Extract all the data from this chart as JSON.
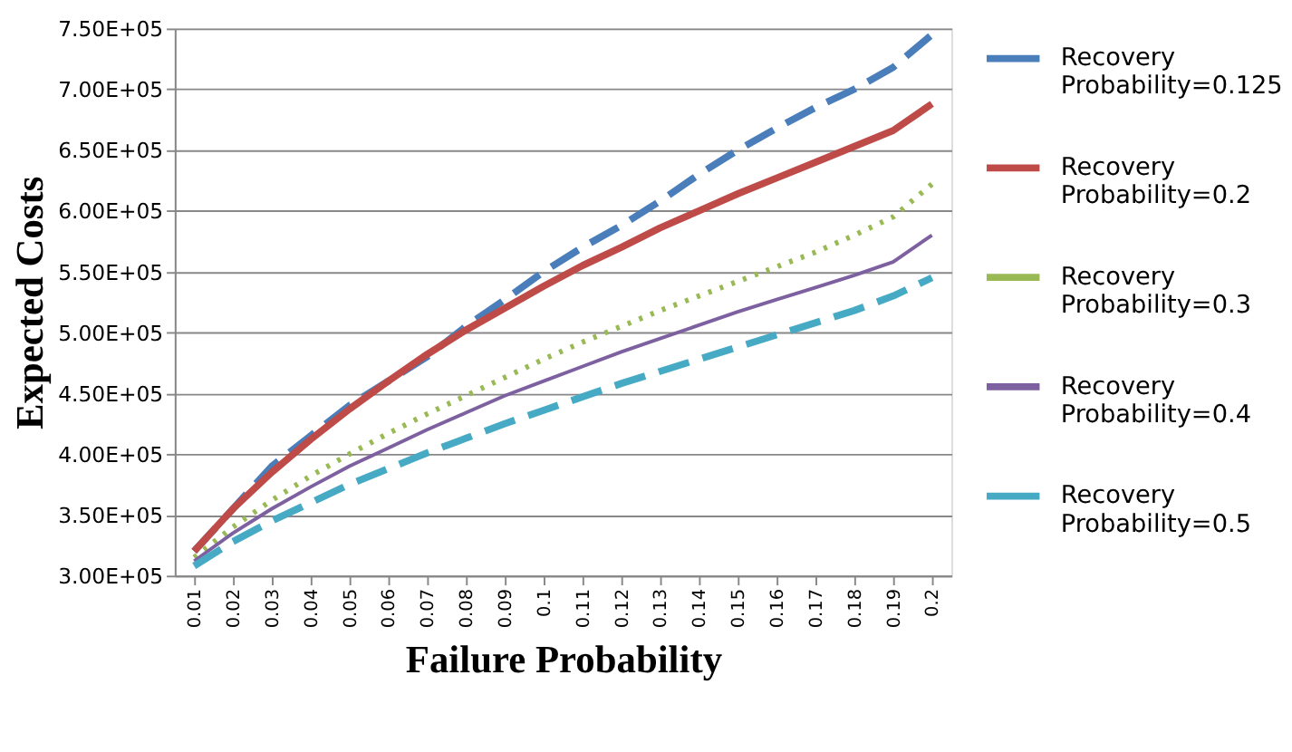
{
  "chart_data": {
    "type": "line",
    "xlabel": "Failure Probability",
    "ylabel": "Expected Costs",
    "categories": [
      "0.01",
      "0.02",
      "0.03",
      "0.04",
      "0.05",
      "0.06",
      "0.07",
      "0.08",
      "0.09",
      "0.1",
      "0.11",
      "0.12",
      "0.13",
      "0.14",
      "0.15",
      "0.16",
      "0.17",
      "0.18",
      "0.19",
      "0.2"
    ],
    "ylim": [
      300000,
      750000
    ],
    "yticks": [
      {
        "value": 300000,
        "label": "3.00E+05"
      },
      {
        "value": 350000,
        "label": "3.50E+05"
      },
      {
        "value": 400000,
        "label": "4.00E+05"
      },
      {
        "value": 450000,
        "label": "4.50E+05"
      },
      {
        "value": 500000,
        "label": "5.00E+05"
      },
      {
        "value": 550000,
        "label": "5.50E+05"
      },
      {
        "value": 600000,
        "label": "6.00E+05"
      },
      {
        "value": 650000,
        "label": "6.50E+05"
      },
      {
        "value": 700000,
        "label": "7.00E+05"
      },
      {
        "value": 750000,
        "label": "7.50E+05"
      }
    ],
    "grid": "y",
    "legend": "right",
    "marker": "none",
    "series": [
      {
        "name": "Recovery Probability=0.125",
        "color": "#4a7ebb",
        "line_style": "dashed",
        "values": [
          320000,
          355000,
          390000,
          415000,
          440000,
          460000,
          480000,
          505000,
          527000,
          550000,
          570000,
          588000,
          608000,
          630000,
          650000,
          668000,
          685000,
          700000,
          718000,
          745000
        ]
      },
      {
        "name": "Recovery Probability=0.2",
        "color": "#be4b48",
        "line_style": "solid",
        "values": [
          320000,
          355000,
          385000,
          412000,
          437000,
          460000,
          482000,
          502000,
          520000,
          538000,
          555000,
          570000,
          586000,
          600000,
          614000,
          627000,
          640000,
          653000,
          666000,
          688000
        ]
      },
      {
        "name": "Recovery Probability=0.3",
        "color": "#98b954",
        "line_style": "dotted",
        "values": [
          315000,
          340000,
          362000,
          382000,
          400000,
          417000,
          433000,
          448000,
          463000,
          478000,
          492000,
          505000,
          518000,
          530000,
          542000,
          554000,
          566000,
          580000,
          595000,
          622000
        ]
      },
      {
        "name": "Recovery Probability=0.4",
        "color": "#7d60a0",
        "line_style": "solid",
        "values": [
          312000,
          335000,
          355000,
          373000,
          390000,
          405000,
          420000,
          434000,
          448000,
          460000,
          472000,
          484000,
          495000,
          506000,
          517000,
          527000,
          537000,
          547000,
          558000,
          580000
        ]
      },
      {
        "name": "Recovery Probability=0.5",
        "color": "#46aac5",
        "line_style": "dashed",
        "values": [
          308000,
          328000,
          345000,
          360000,
          375000,
          388000,
          401000,
          413000,
          425000,
          436000,
          447000,
          458000,
          468000,
          478000,
          488000,
          498000,
          508000,
          518000,
          530000,
          545000
        ]
      }
    ]
  }
}
